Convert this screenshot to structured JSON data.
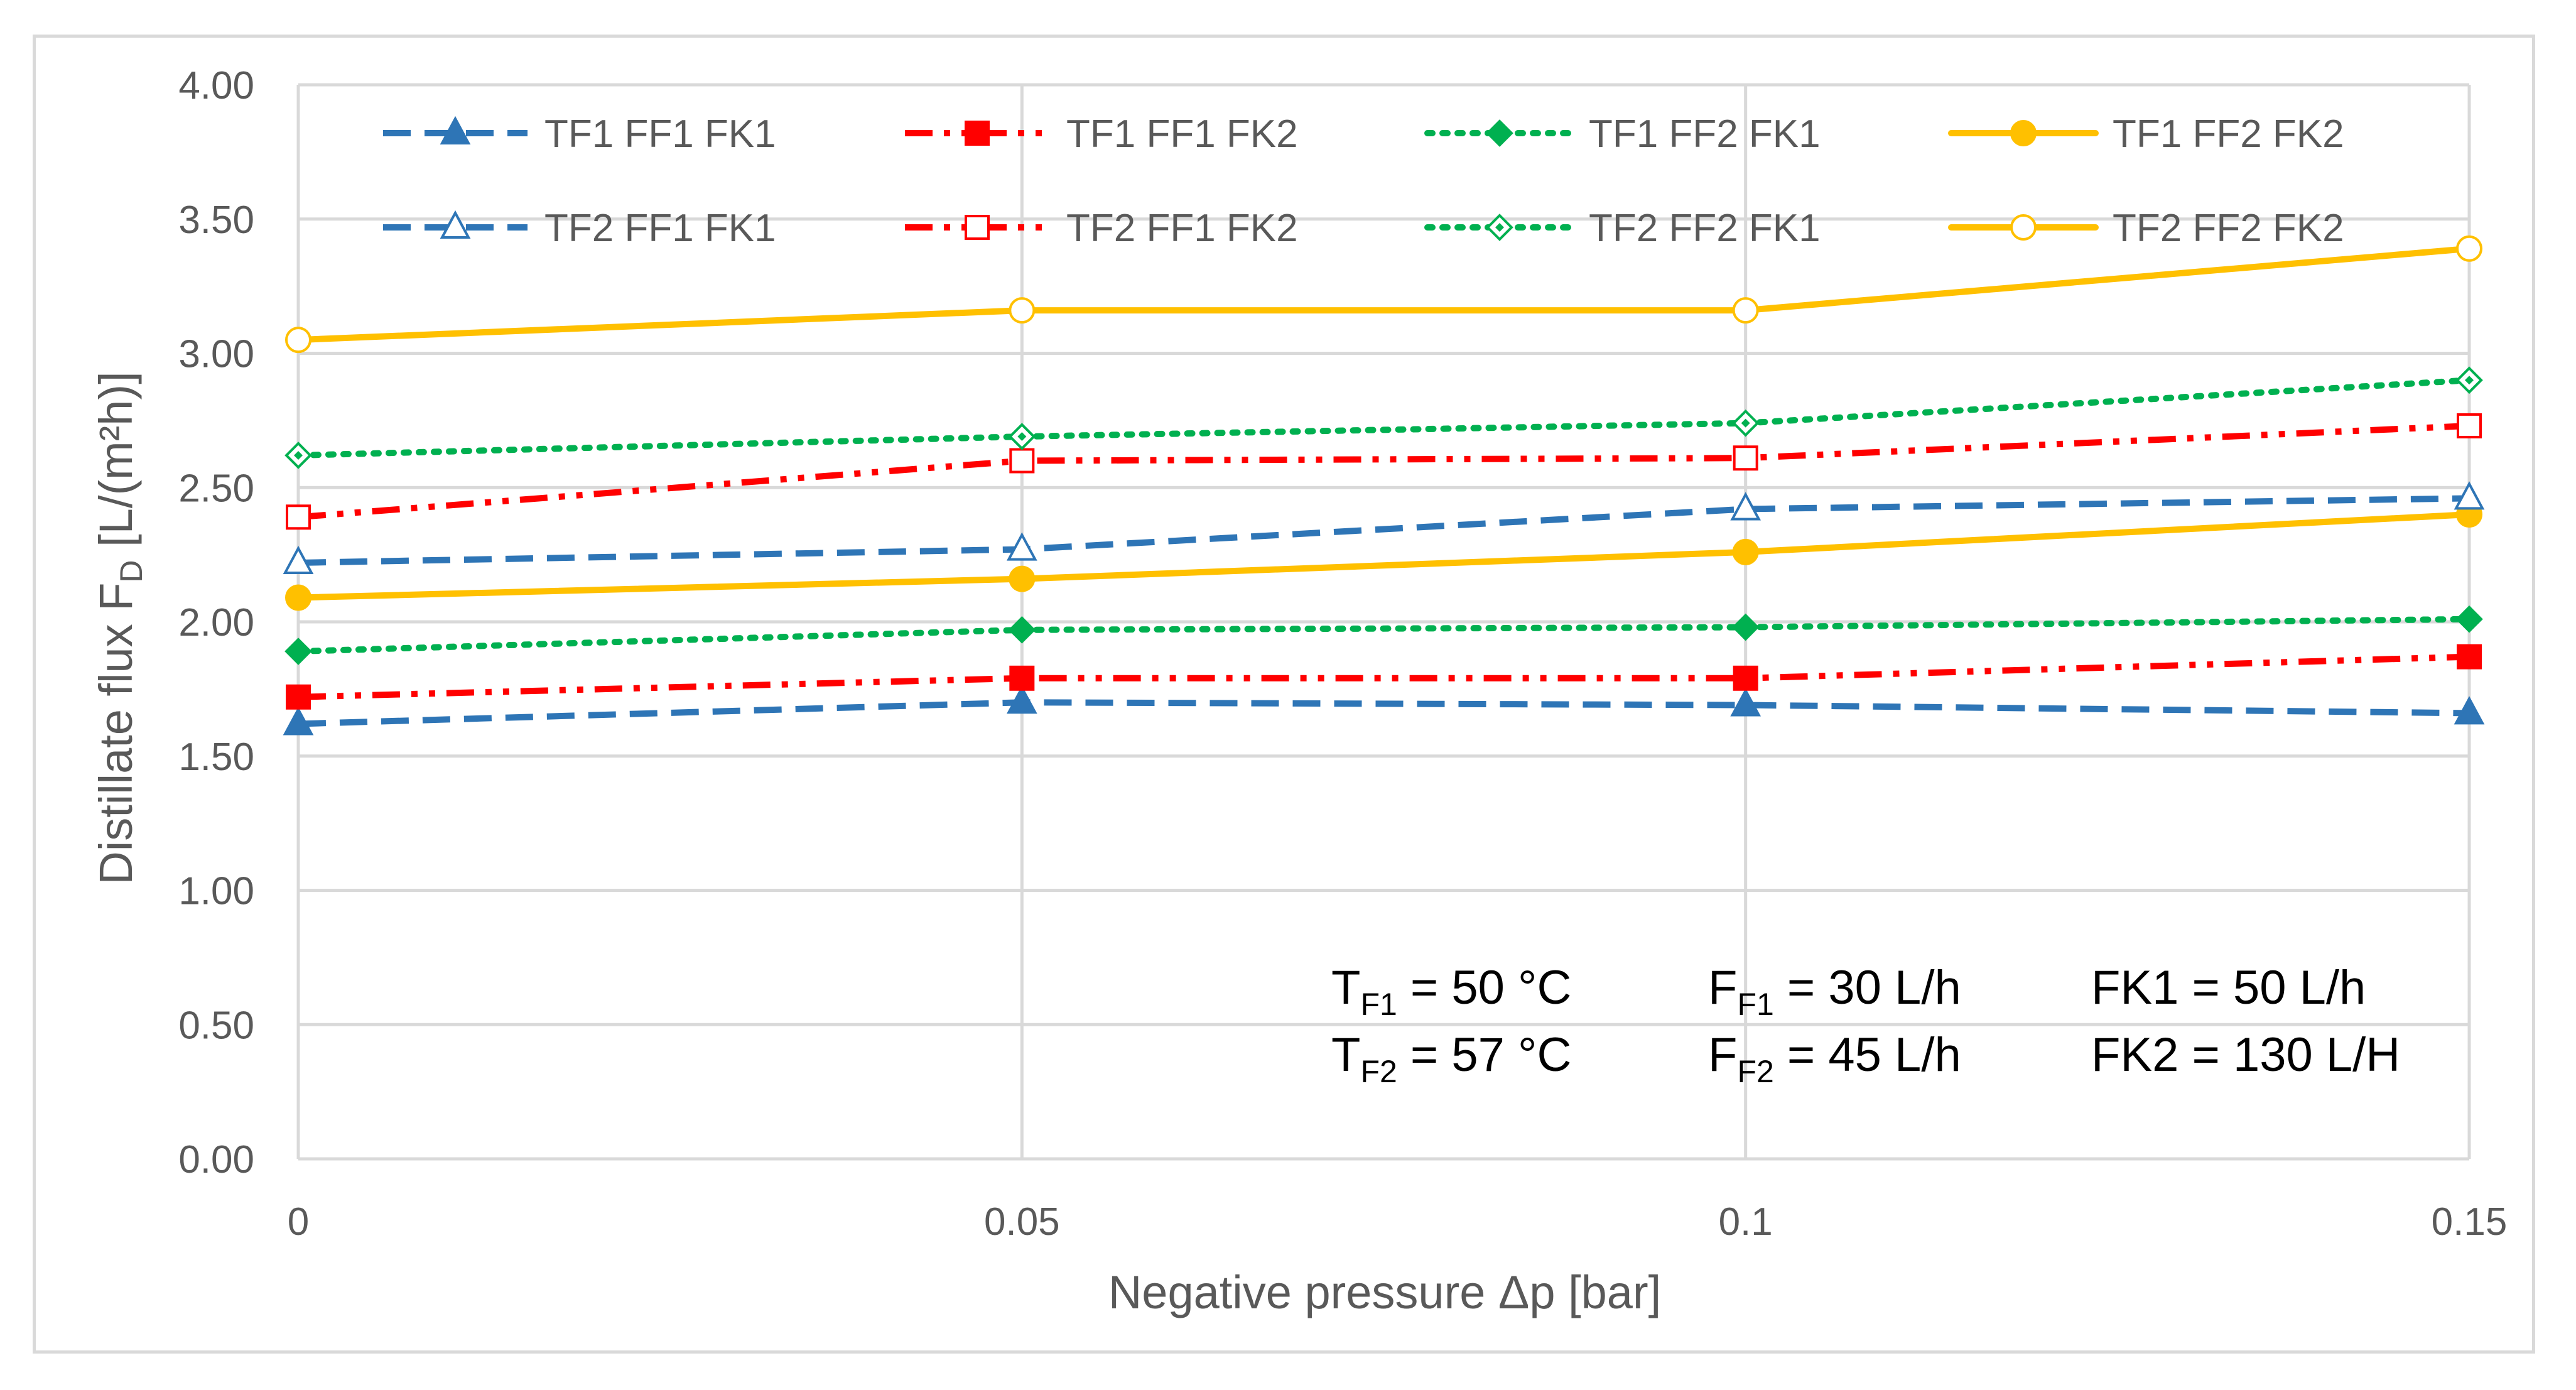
{
  "chart_data": {
    "type": "line",
    "title": "",
    "xlabel": "Negative pressure Δp [bar]",
    "ylabel": {
      "main": "Distillate flux F",
      "sub": "D",
      "unit": " [L/(m²h)]"
    },
    "x": [
      0,
      0.05,
      0.1,
      0.15
    ],
    "x_tick_labels": [
      "0",
      "0.05",
      "0.1",
      "0.15"
    ],
    "ylim": [
      0,
      4
    ],
    "y_tick_labels": [
      "0.00",
      "0.50",
      "1.00",
      "1.50",
      "2.00",
      "2.50",
      "3.00",
      "3.50",
      "4.00"
    ],
    "grid": true,
    "legend_position": "top",
    "series": [
      {
        "name": "TF1 FF1 FK1",
        "values": [
          1.62,
          1.7,
          1.69,
          1.66
        ],
        "color": "#2e75b6",
        "dash": "dash",
        "marker": "triangle",
        "filled": true
      },
      {
        "name": "TF1 FF1 FK2",
        "values": [
          1.72,
          1.79,
          1.79,
          1.87
        ],
        "color": "#ff0000",
        "dash": "dashdotdot",
        "marker": "square",
        "filled": true
      },
      {
        "name": "TF1 FF2 FK1",
        "values": [
          1.89,
          1.97,
          1.98,
          2.01
        ],
        "color": "#00b050",
        "dash": "dot",
        "marker": "diamond",
        "filled": true
      },
      {
        "name": "TF1 FF2 FK2",
        "values": [
          2.09,
          2.16,
          2.26,
          2.4
        ],
        "color": "#ffc000",
        "dash": "solid",
        "marker": "circle",
        "filled": true
      },
      {
        "name": "TF2 FF1 FK1",
        "values": [
          2.22,
          2.27,
          2.42,
          2.46
        ],
        "color": "#2e75b6",
        "dash": "dash",
        "marker": "triangle",
        "filled": false
      },
      {
        "name": "TF2 FF1 FK2",
        "values": [
          2.39,
          2.6,
          2.61,
          2.73
        ],
        "color": "#ff0000",
        "dash": "dashdotdot",
        "marker": "square",
        "filled": false
      },
      {
        "name": "TF2 FF2 FK1",
        "values": [
          2.62,
          2.69,
          2.74,
          2.9
        ],
        "color": "#00b050",
        "dash": "dot",
        "marker": "diamond",
        "filled": false
      },
      {
        "name": "TF2 FF2 FK2",
        "values": [
          3.05,
          3.16,
          3.16,
          3.39
        ],
        "color": "#ffc000",
        "dash": "solid",
        "marker": "circle",
        "filled": false
      }
    ],
    "annotations": [
      {
        "main": "T",
        "sub": "F1",
        "rest": " = 50 °C"
      },
      {
        "main": "F",
        "sub": "F1",
        "rest": " = 30 L/h"
      },
      {
        "main": "FK1 = 50 L/h",
        "sub": "",
        "rest": ""
      },
      {
        "main": "T",
        "sub": "F2",
        "rest": " = 57 °C"
      },
      {
        "main": "F",
        "sub": "F2",
        "rest": " = 45 L/h"
      },
      {
        "main": "FK2 = 130 L/H",
        "sub": "",
        "rest": ""
      }
    ]
  }
}
